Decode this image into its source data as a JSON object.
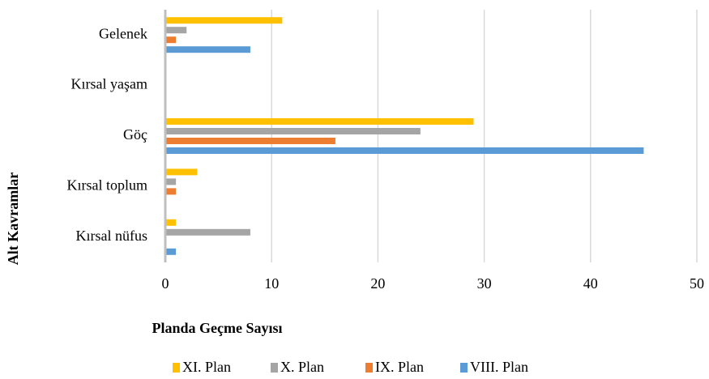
{
  "chart_data": {
    "type": "bar",
    "orientation": "horizontal",
    "x_label": "Planda Geçme Sayısı",
    "y_label": "Alt Kavramlar",
    "categories": [
      "Gelenek",
      "Kırsal yaşam",
      "Göç",
      "Kırsal toplum",
      "Kırsal nüfus"
    ],
    "series": [
      {
        "name": "XI. Plan",
        "color": "#ffc000",
        "values": [
          11,
          0,
          29,
          3,
          1
        ]
      },
      {
        "name": "X. Plan",
        "color": "#a5a5a5",
        "values": [
          2,
          0,
          24,
          1,
          8
        ]
      },
      {
        "name": "IX. Plan",
        "color": "#ed7d31",
        "values": [
          1,
          0,
          16,
          1,
          0
        ]
      },
      {
        "name": "VIII. Plan",
        "color": "#5b9bd5",
        "values": [
          8,
          0,
          45,
          0,
          1
        ]
      }
    ],
    "xlim": [
      0,
      50
    ],
    "xticks": [
      0,
      10,
      20,
      30,
      40,
      50
    ],
    "grid": true,
    "legend": "bottom"
  }
}
